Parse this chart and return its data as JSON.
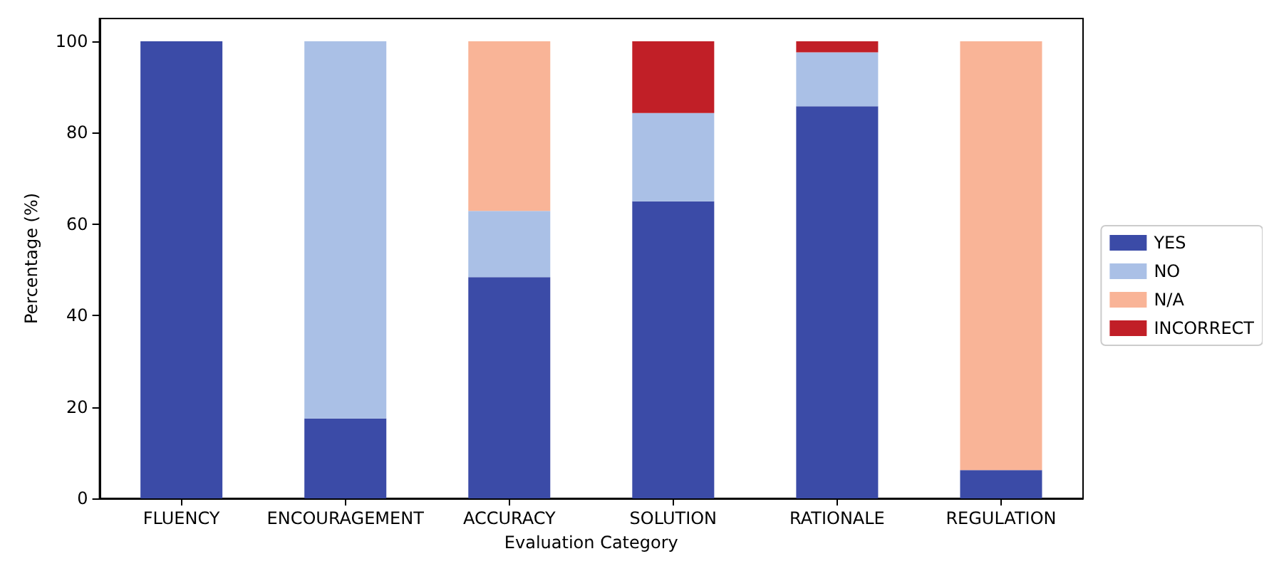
{
  "chart_data": {
    "type": "bar",
    "stacked": true,
    "xlabel": "Evaluation Category",
    "ylabel": "Percentage (%)",
    "categories": [
      "FLUENCY",
      "ENCOURAGEMENT",
      "ACCURACY",
      "SOLUTION",
      "RATIONALE",
      "REGULATION"
    ],
    "series": [
      {
        "name": "YES",
        "color": "#3b4ba7",
        "values": [
          100,
          17.5,
          48.4,
          65.0,
          85.8,
          6.2
        ]
      },
      {
        "name": "NO",
        "color": "#aac0e6",
        "values": [
          0,
          82.5,
          14.5,
          19.3,
          11.8,
          0
        ]
      },
      {
        "name": "N/A",
        "color": "#f9b497",
        "values": [
          0,
          0,
          37.1,
          0,
          0,
          93.8
        ]
      },
      {
        "name": "INCORRECT",
        "color": "#c11f27",
        "values": [
          0,
          0,
          0,
          15.7,
          2.4,
          0
        ]
      }
    ],
    "ylim": [
      0,
      105
    ],
    "yticks": [
      0,
      20,
      40,
      60,
      80,
      100
    ],
    "grid": false,
    "legend": "right"
  }
}
